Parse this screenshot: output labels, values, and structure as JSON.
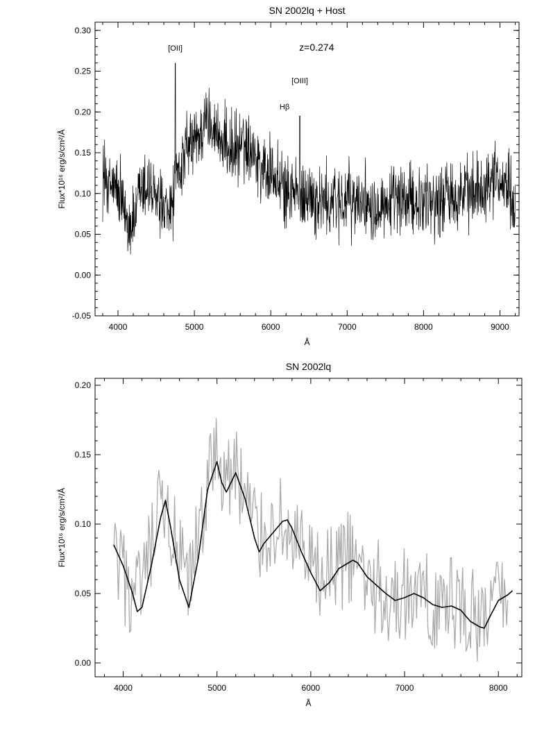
{
  "chart_data": [
    {
      "type": "line",
      "title": "SN 2002lq + Host",
      "xlabel": "Å",
      "ylabel": "Flux*10¹⁶ erg/s/cm²/Å",
      "xlim": [
        3700,
        9250
      ],
      "ylim": [
        -0.05,
        0.31
      ],
      "xticks": [
        4000,
        5000,
        6000,
        7000,
        8000,
        9000
      ],
      "yticks": [
        -0.05,
        0.0,
        0.05,
        0.1,
        0.15,
        0.2,
        0.25,
        0.3
      ],
      "ytick_labels": [
        "-0.05",
        "0.00",
        "0.05",
        "0.10",
        "0.15",
        "0.20",
        "0.25",
        "0.30"
      ],
      "annotations": [
        {
          "text": "[OII]",
          "x": 4750,
          "y": 0.275
        },
        {
          "text": "z=0.274",
          "x": 6600,
          "y": 0.275
        },
        {
          "text": "[OIII]",
          "x": 6380,
          "y": 0.235
        },
        {
          "text": "Hβ",
          "x": 6180,
          "y": 0.203
        }
      ],
      "series": [
        {
          "color": "#000000",
          "x": [
            3800,
            3900,
            4000,
            4100,
            4200,
            4300,
            4400,
            4500,
            4600,
            4700,
            4800,
            4900,
            5000,
            5100,
            5200,
            5300,
            5400,
            5500,
            5600,
            5700,
            5800,
            5900,
            6000,
            6100,
            6200,
            6300,
            6400,
            6500,
            6600,
            6700,
            6800,
            6900,
            7000,
            7100,
            7200,
            7300,
            7400,
            7500,
            7600,
            7700,
            7800,
            7900,
            8000,
            8100,
            8200,
            8300,
            8400,
            8500,
            8600,
            8700,
            8800,
            8900,
            9000,
            9100,
            9200
          ],
          "y": [
            0.12,
            0.11,
            0.1,
            0.07,
            0.06,
            0.1,
            0.11,
            0.09,
            0.07,
            0.08,
            0.13,
            0.15,
            0.16,
            0.18,
            0.19,
            0.17,
            0.16,
            0.15,
            0.16,
            0.16,
            0.15,
            0.13,
            0.12,
            0.11,
            0.1,
            0.1,
            0.1,
            0.1,
            0.09,
            0.09,
            0.09,
            0.09,
            0.09,
            0.09,
            0.09,
            0.09,
            0.09,
            0.09,
            0.09,
            0.09,
            0.09,
            0.09,
            0.09,
            0.09,
            0.09,
            0.1,
            0.1,
            0.1,
            0.1,
            0.11,
            0.11,
            0.12,
            0.12,
            0.11,
            0.1
          ]
        }
      ]
    },
    {
      "type": "line",
      "title": "SN 2002lq",
      "xlabel": "Å",
      "ylabel": "Flux*10¹⁶ erg/s/cm²/Å",
      "xlim": [
        3700,
        8250
      ],
      "ylim": [
        -0.01,
        0.205
      ],
      "xticks": [
        4000,
        5000,
        6000,
        7000,
        8000
      ],
      "yticks": [
        0.0,
        0.05,
        0.1,
        0.15,
        0.2
      ],
      "ytick_labels": [
        "0.00",
        "0.05",
        "0.10",
        "0.15",
        "0.20"
      ],
      "series": [
        {
          "color": "#aaaaaa",
          "x": [
            3900,
            4000,
            4100,
            4200,
            4300,
            4400,
            4500,
            4600,
            4700,
            4800,
            4900,
            5000,
            5100,
            5200,
            5300,
            5400,
            5500,
            5600,
            5700,
            5800,
            5900,
            6000,
            6100,
            6200,
            6300,
            6400,
            6500,
            6600,
            6700,
            6800,
            6900,
            7000,
            7100,
            7200,
            7300,
            7400,
            7500,
            7600,
            7700,
            7800,
            7900,
            8000,
            8100
          ],
          "y": [
            0.075,
            0.06,
            0.045,
            0.05,
            0.08,
            0.11,
            0.1,
            0.07,
            0.05,
            0.09,
            0.13,
            0.15,
            0.13,
            0.14,
            0.12,
            0.1,
            0.09,
            0.1,
            0.1,
            0.09,
            0.08,
            0.065,
            0.06,
            0.065,
            0.07,
            0.075,
            0.07,
            0.06,
            0.055,
            0.05,
            0.045,
            0.05,
            0.05,
            0.045,
            0.045,
            0.04,
            0.045,
            0.04,
            0.035,
            0.03,
            0.04,
            0.045,
            0.05
          ]
        },
        {
          "color": "#000000",
          "x": [
            3900,
            4000,
            4100,
            4150,
            4200,
            4300,
            4400,
            4450,
            4500,
            4600,
            4700,
            4800,
            4900,
            5000,
            5050,
            5100,
            5200,
            5300,
            5400,
            5450,
            5500,
            5600,
            5700,
            5750,
            5800,
            5900,
            6000,
            6100,
            6200,
            6300,
            6400,
            6450,
            6500,
            6600,
            6700,
            6800,
            6900,
            7000,
            7100,
            7200,
            7300,
            7400,
            7500,
            7600,
            7700,
            7800,
            7850,
            7900,
            8000,
            8100,
            8150
          ],
          "y": [
            0.085,
            0.07,
            0.05,
            0.037,
            0.04,
            0.07,
            0.105,
            0.117,
            0.1,
            0.06,
            0.04,
            0.075,
            0.125,
            0.145,
            0.13,
            0.123,
            0.137,
            0.118,
            0.09,
            0.08,
            0.086,
            0.094,
            0.102,
            0.103,
            0.097,
            0.08,
            0.065,
            0.052,
            0.058,
            0.068,
            0.072,
            0.074,
            0.072,
            0.062,
            0.056,
            0.05,
            0.045,
            0.047,
            0.05,
            0.047,
            0.042,
            0.04,
            0.041,
            0.038,
            0.03,
            0.026,
            0.025,
            0.032,
            0.045,
            0.049,
            0.052
          ]
        }
      ]
    }
  ]
}
